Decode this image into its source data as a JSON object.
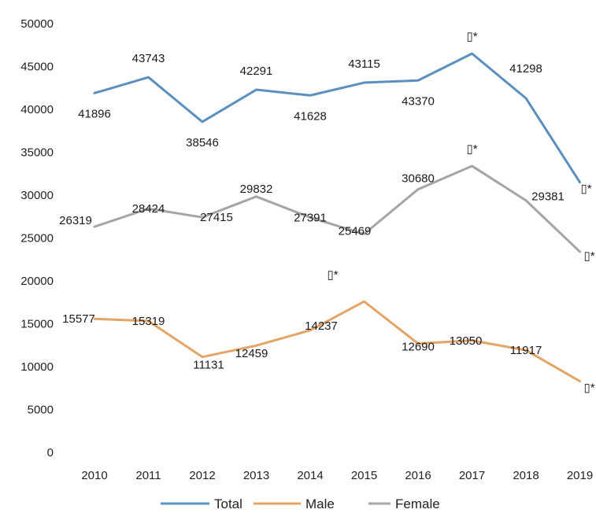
{
  "chart_data": {
    "type": "line",
    "categories": [
      "2010",
      "2011",
      "2012",
      "2013",
      "2014",
      "2015",
      "2016",
      "2017",
      "2018",
      "2019"
    ],
    "ylim": [
      0,
      50000
    ],
    "yticks": [
      0,
      5000,
      10000,
      15000,
      20000,
      25000,
      30000,
      35000,
      40000,
      45000,
      50000
    ],
    "ytick_labels": [
      "0",
      "5000",
      "10000",
      "15000",
      "20000",
      "25000",
      "30000",
      "35000",
      "40000",
      "45000",
      "50000"
    ],
    "grid": false,
    "legend_position": "bottom",
    "series": [
      {
        "name": "Total",
        "color": "#5b8fbf",
        "values": [
          41896,
          43743,
          38546,
          42291,
          41628,
          43115,
          43370,
          46500,
          41298,
          31500
        ],
        "labels": [
          "41896",
          "43743",
          "38546",
          "42291",
          "41628",
          "43115",
          "43370",
          "▯*",
          "41298",
          "▯*"
        ]
      },
      {
        "name": "Male",
        "color": "#e3a466",
        "values": [
          15577,
          15319,
          11131,
          12459,
          14237,
          17600,
          12690,
          13050,
          11917,
          8300
        ],
        "labels": [
          "15577",
          "15319",
          "11131",
          "12459",
          "14237",
          "▯*",
          "12690",
          "13050",
          "11917",
          "▯*"
        ]
      },
      {
        "name": "Female",
        "color": "#a5a5a5",
        "values": [
          26319,
          28424,
          27415,
          29832,
          27391,
          25469,
          30680,
          33400,
          29381,
          23400
        ],
        "labels": [
          "26319",
          "28424",
          "27415",
          "29832",
          "27391",
          "25469",
          "30680",
          "▯*",
          "29381",
          "▯*"
        ]
      }
    ]
  }
}
